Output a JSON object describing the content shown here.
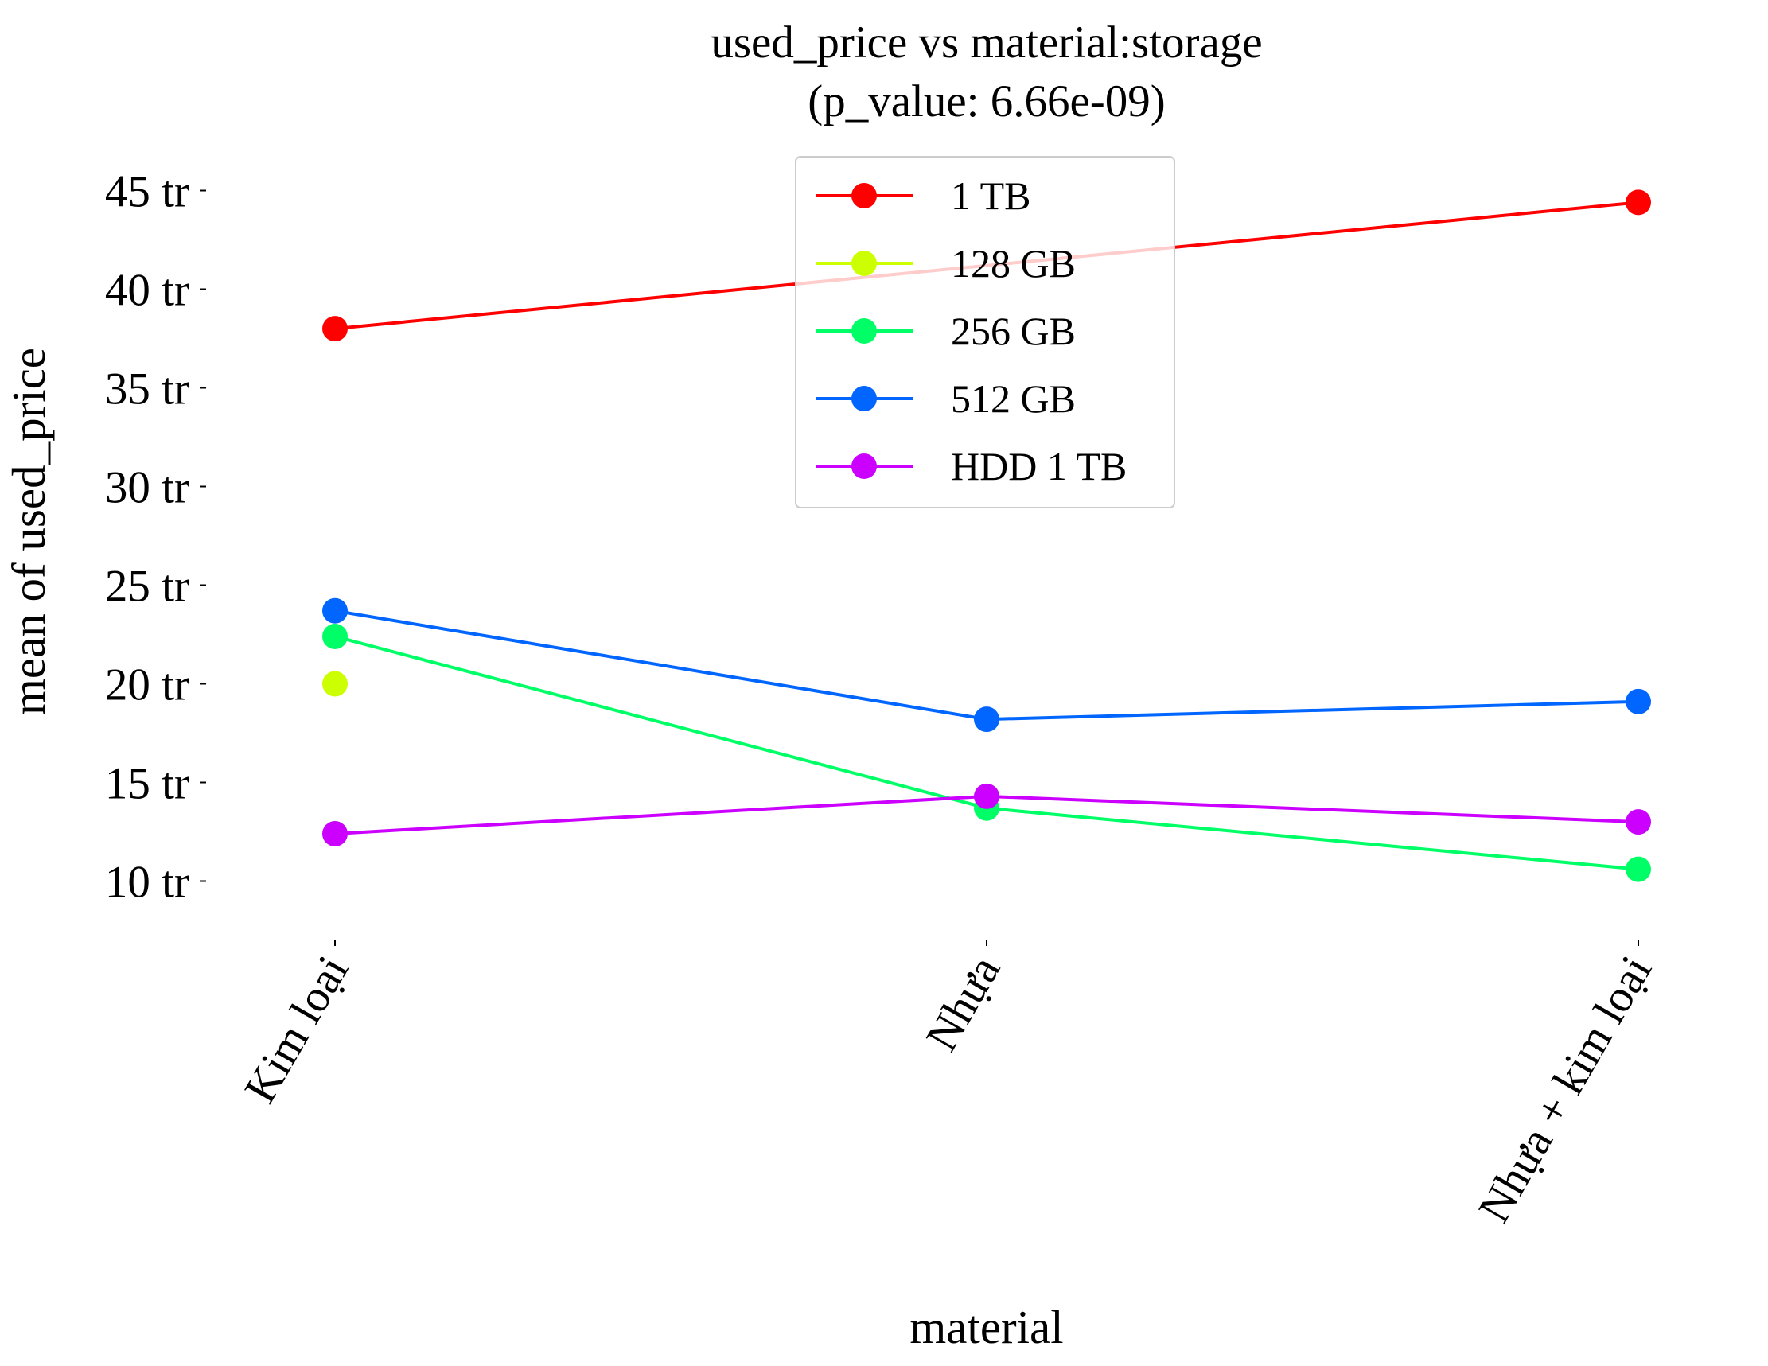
{
  "chart_data": {
    "type": "line",
    "title": "used_price vs material:storage",
    "subtitle": "(p_value: 6.66e-09)",
    "xlabel": "material",
    "ylabel": "mean of used_price",
    "categories": [
      "Kim loại",
      "Nhựa",
      "Nhựa + kim loại"
    ],
    "yticks": [
      {
        "value": 10,
        "label": "10 tr"
      },
      {
        "value": 15,
        "label": "15 tr"
      },
      {
        "value": 20,
        "label": "20 tr"
      },
      {
        "value": 25,
        "label": "25 tr"
      },
      {
        "value": 30,
        "label": "30 tr"
      },
      {
        "value": 35,
        "label": "35 tr"
      },
      {
        "value": 40,
        "label": "40 tr"
      },
      {
        "value": 45,
        "label": "45 tr"
      }
    ],
    "ylim": [
      7.5,
      47.5
    ],
    "grid": false,
    "legend_position": "top-center",
    "series": [
      {
        "name": "1 TB",
        "color": "#ff0000",
        "values": [
          38.0,
          null,
          44.4
        ]
      },
      {
        "name": "128 GB",
        "color": "#ccff00",
        "values": [
          20.0,
          null,
          null
        ]
      },
      {
        "name": "256 GB",
        "color": "#00ff66",
        "values": [
          22.4,
          13.7,
          10.6
        ]
      },
      {
        "name": "512 GB",
        "color": "#0066ff",
        "values": [
          23.7,
          18.2,
          19.1
        ]
      },
      {
        "name": "HDD 1 TB",
        "color": "#cc00ff",
        "values": [
          12.4,
          14.3,
          13.0
        ]
      }
    ]
  }
}
